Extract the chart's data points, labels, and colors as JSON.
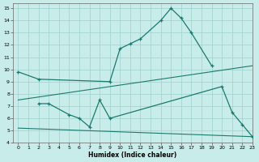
{
  "xlabel": "Humidex (Indice chaleur)",
  "color": "#1a7a6e",
  "bg_color": "#c8ecea",
  "grid_color": "#9ed0cb",
  "xlim": [
    -0.5,
    23
  ],
  "ylim": [
    4,
    15.4
  ],
  "yticks": [
    4,
    5,
    6,
    7,
    8,
    9,
    10,
    11,
    12,
    13,
    14,
    15
  ],
  "xticks": [
    0,
    1,
    2,
    3,
    4,
    5,
    6,
    7,
    8,
    9,
    10,
    11,
    12,
    13,
    14,
    15,
    16,
    17,
    18,
    19,
    20,
    21,
    22,
    23
  ],
  "line1_x": [
    0,
    2,
    9,
    10,
    11,
    12,
    14,
    15,
    16,
    17,
    19
  ],
  "line1_y": [
    9.8,
    9.2,
    9.0,
    11.7,
    12.1,
    12.5,
    14.0,
    15.0,
    14.2,
    13.0,
    10.3
  ],
  "line2_x": [
    0,
    23
  ],
  "line2_y": [
    7.5,
    10.3
  ],
  "line3_x": [
    2,
    3,
    5,
    6,
    7,
    8,
    9,
    20,
    21,
    22,
    23
  ],
  "line3_y": [
    7.2,
    7.2,
    6.3,
    6.0,
    5.3,
    7.5,
    6.0,
    8.6,
    6.5,
    5.5,
    4.5
  ],
  "line4_x": [
    0,
    23
  ],
  "line4_y": [
    5.2,
    4.5
  ]
}
